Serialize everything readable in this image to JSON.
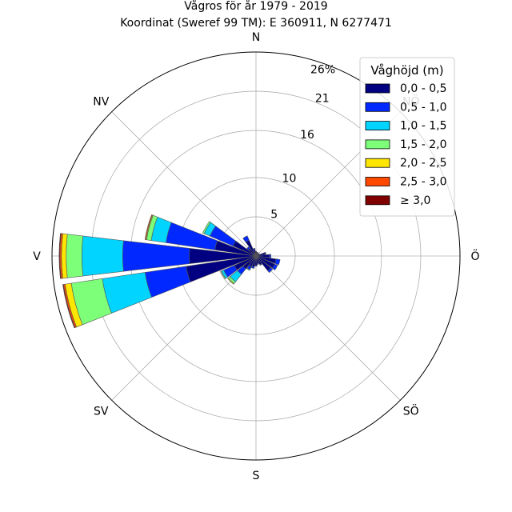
{
  "chart_data": {
    "type": "bar",
    "subtype": "polar-stacked-wind-rose",
    "title": "Vågros för år 1979 - 2019",
    "subtitle": "Koordinat (Sweref 99 TM): E 360911, N 6277471",
    "units": "%",
    "radial_max": 26,
    "radial_ticks": [
      5,
      10,
      16,
      21
    ],
    "radial_max_label": "26%",
    "directions": [
      "N",
      "NV",
      "V",
      "SV",
      "S",
      "SÖ",
      "Ö",
      "NÖ"
    ],
    "sector_width_deg": 15,
    "legend": {
      "title": "Våghöjd (m)",
      "placement": "top-right",
      "entries": [
        {
          "label": "0,0 - 0,5",
          "color": "#000080"
        },
        {
          "label": "0,5 - 1,0",
          "color": "#0028ff"
        },
        {
          "label": "1,0 - 1,5",
          "color": "#00d4ff"
        },
        {
          "label": "1,5 - 2,0",
          "color": "#7dff7a"
        },
        {
          "label": "2,0 - 2,5",
          "color": "#ffe600"
        },
        {
          "label": "2,5 - 3,0",
          "color": "#ff4800"
        },
        {
          "label": "≥ 3,0",
          "color": "#800000"
        }
      ]
    },
    "sectors": [
      {
        "bearing": 0,
        "values": [
          0.6,
          0.0,
          0,
          0,
          0,
          0,
          0
        ]
      },
      {
        "bearing": 15,
        "values": [
          0.5,
          0.0,
          0,
          0,
          0,
          0,
          0
        ]
      },
      {
        "bearing": 30,
        "values": [
          0.5,
          0.0,
          0,
          0,
          0,
          0,
          0
        ]
      },
      {
        "bearing": 45,
        "values": [
          0.4,
          0.0,
          0,
          0,
          0,
          0,
          0
        ]
      },
      {
        "bearing": 60,
        "values": [
          0.5,
          0.0,
          0,
          0,
          0,
          0,
          0
        ]
      },
      {
        "bearing": 75,
        "values": [
          1.2,
          0.1,
          0,
          0,
          0,
          0,
          0
        ]
      },
      {
        "bearing": 90,
        "values": [
          1.7,
          0.2,
          0,
          0,
          0,
          0,
          0
        ]
      },
      {
        "bearing": 105,
        "values": [
          2.6,
          0.5,
          0,
          0,
          0,
          0,
          0
        ]
      },
      {
        "bearing": 120,
        "values": [
          2.6,
          0.4,
          0,
          0,
          0,
          0,
          0
        ]
      },
      {
        "bearing": 135,
        "values": [
          2.4,
          0.3,
          0,
          0,
          0,
          0,
          0
        ]
      },
      {
        "bearing": 150,
        "values": [
          1.2,
          0.1,
          0,
          0,
          0,
          0,
          0
        ]
      },
      {
        "bearing": 165,
        "values": [
          1.0,
          0.1,
          0,
          0,
          0,
          0,
          0
        ]
      },
      {
        "bearing": 180,
        "values": [
          1.2,
          0.1,
          0,
          0,
          0,
          0,
          0
        ]
      },
      {
        "bearing": 195,
        "values": [
          1.4,
          0.2,
          0,
          0,
          0,
          0,
          0
        ]
      },
      {
        "bearing": 210,
        "values": [
          1.5,
          0.4,
          0.1,
          0,
          0,
          0,
          0
        ]
      },
      {
        "bearing": 225,
        "values": [
          2.1,
          0.9,
          1.2,
          0.3,
          0.1,
          0,
          0
        ]
      },
      {
        "bearing": 240,
        "values": [
          3.0,
          1.5,
          0.3,
          0.1,
          0,
          0,
          0
        ]
      },
      {
        "bearing": 255,
        "values": [
          9.0,
          5.3,
          5.5,
          4.0,
          0.8,
          0.2,
          0.1
        ]
      },
      {
        "bearing": 270,
        "values": [
          8.5,
          8.5,
          5.2,
          2.0,
          0.6,
          0.2,
          0.1
        ]
      },
      {
        "bearing": 285,
        "values": [
          5.3,
          6.3,
          1.9,
          0.6,
          0.1,
          0.1,
          0
        ]
      },
      {
        "bearing": 300,
        "values": [
          3.2,
          3.2,
          0.8,
          0.2,
          0,
          0,
          0
        ]
      },
      {
        "bearing": 315,
        "values": [
          1.2,
          0.3,
          0.0,
          0,
          0,
          0,
          0
        ]
      },
      {
        "bearing": 330,
        "values": [
          2.2,
          0.6,
          0.0,
          0,
          0,
          0,
          0
        ]
      },
      {
        "bearing": 345,
        "values": [
          0.8,
          0.2,
          0.0,
          0,
          0,
          0,
          0
        ]
      }
    ]
  }
}
